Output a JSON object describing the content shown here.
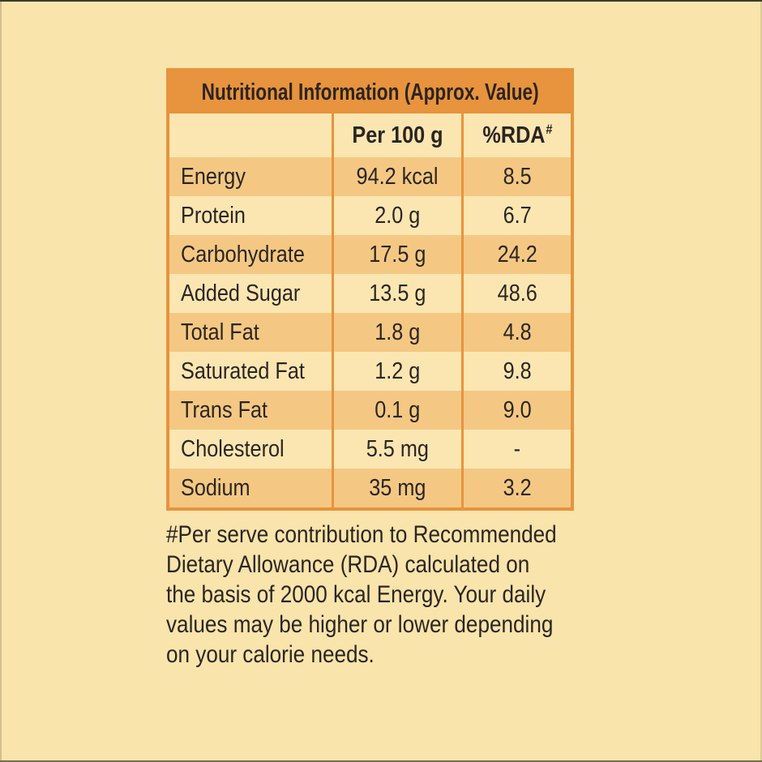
{
  "colors": {
    "background": "#F9E4AB",
    "header_orange": "#E8933D",
    "row_dark": "#F4C883",
    "row_light": "#FBE6B1",
    "text": "#2B2521"
  },
  "table": {
    "title": "Nutritional Information (Approx. Value)",
    "columns": {
      "nutrient": "",
      "per_100g": "Per 100 g",
      "rda": "%RDA",
      "rda_sup": "#"
    },
    "rows": [
      {
        "nutrient": "Energy",
        "per_100g": "94.2 kcal",
        "rda": "8.5"
      },
      {
        "nutrient": "Protein",
        "per_100g": "2.0 g",
        "rda": "6.7"
      },
      {
        "nutrient": "Carbohydrate",
        "per_100g": "17.5 g",
        "rda": "24.2"
      },
      {
        "nutrient": "Added Sugar",
        "per_100g": "13.5 g",
        "rda": "48.6"
      },
      {
        "nutrient": "Total Fat",
        "per_100g": "1.8 g",
        "rda": "4.8"
      },
      {
        "nutrient": "Saturated Fat",
        "per_100g": "1.2 g",
        "rda": "9.8"
      },
      {
        "nutrient": "Trans Fat",
        "per_100g": "0.1 g",
        "rda": "9.0"
      },
      {
        "nutrient": "Cholesterol",
        "per_100g": "5.5 mg",
        "rda": "-"
      },
      {
        "nutrient": "Sodium",
        "per_100g": "35 mg",
        "rda": "3.2"
      }
    ]
  },
  "footnote": {
    "lines": [
      "#Per serve contribution to Recommended",
      "Dietary Allowance (RDA) calculated on",
      "the basis of 2000 kcal Energy. Your daily",
      "values may be higher or lower depending",
      "on your calorie needs."
    ]
  }
}
